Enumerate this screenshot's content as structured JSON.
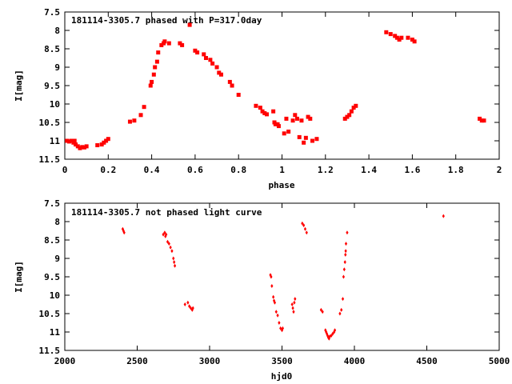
{
  "chart_data": [
    {
      "type": "scatter",
      "title": "181114-3305.7 phased with P=317.0day",
      "xlabel": "phase",
      "ylabel": "I[mag]",
      "xlim": [
        0,
        2
      ],
      "ylim": [
        11.5,
        7.5
      ],
      "y_inverted": true,
      "grid": false,
      "color": "#ff0000",
      "marker": "square",
      "xticks": [
        "0",
        "0.2",
        "0.4",
        "0.6",
        "0.8",
        "1",
        "1.2",
        "1.4",
        "1.6",
        "1.8",
        "2"
      ],
      "yticks": [
        "7.5",
        "8",
        "8.5",
        "9",
        "9.5",
        "10",
        "10.5",
        "11",
        "11.5"
      ],
      "points": [
        [
          0.01,
          11.0
        ],
        [
          0.02,
          11.02
        ],
        [
          0.03,
          11.0
        ],
        [
          0.04,
          11.05
        ],
        [
          0.045,
          11.0
        ],
        [
          0.05,
          11.1
        ],
        [
          0.06,
          11.15
        ],
        [
          0.07,
          11.2
        ],
        [
          0.08,
          11.17
        ],
        [
          0.09,
          11.18
        ],
        [
          0.1,
          11.15
        ],
        [
          0.15,
          11.12
        ],
        [
          0.17,
          11.1
        ],
        [
          0.18,
          11.05
        ],
        [
          0.19,
          11.0
        ],
        [
          0.2,
          10.95
        ],
        [
          0.3,
          10.48
        ],
        [
          0.32,
          10.45
        ],
        [
          0.35,
          10.3
        ],
        [
          0.365,
          10.08
        ],
        [
          0.395,
          9.5
        ],
        [
          0.4,
          9.4
        ],
        [
          0.41,
          9.2
        ],
        [
          0.415,
          9.0
        ],
        [
          0.425,
          8.85
        ],
        [
          0.43,
          8.6
        ],
        [
          0.445,
          8.4
        ],
        [
          0.455,
          8.35
        ],
        [
          0.46,
          8.3
        ],
        [
          0.48,
          8.35
        ],
        [
          0.53,
          8.35
        ],
        [
          0.54,
          8.4
        ],
        [
          0.575,
          7.85
        ],
        [
          0.6,
          8.55
        ],
        [
          0.61,
          8.6
        ],
        [
          0.64,
          8.65
        ],
        [
          0.65,
          8.75
        ],
        [
          0.67,
          8.8
        ],
        [
          0.68,
          8.9
        ],
        [
          0.7,
          9.0
        ],
        [
          0.71,
          9.15
        ],
        [
          0.72,
          9.2
        ],
        [
          0.76,
          9.4
        ],
        [
          0.77,
          9.5
        ],
        [
          0.8,
          9.75
        ],
        [
          0.88,
          10.05
        ],
        [
          0.9,
          10.1
        ],
        [
          0.91,
          10.2
        ],
        [
          0.92,
          10.25
        ],
        [
          0.93,
          10.28
        ],
        [
          0.96,
          10.2
        ],
        [
          0.965,
          10.5
        ],
        [
          0.97,
          10.55
        ],
        [
          0.98,
          10.55
        ],
        [
          0.985,
          10.6
        ],
        [
          1.01,
          10.8
        ],
        [
          1.02,
          10.4
        ],
        [
          1.03,
          10.75
        ],
        [
          1.05,
          10.45
        ],
        [
          1.06,
          10.3
        ],
        [
          1.07,
          10.4
        ],
        [
          1.08,
          10.9
        ],
        [
          1.09,
          10.45
        ],
        [
          1.1,
          11.05
        ],
        [
          1.11,
          10.92
        ],
        [
          1.12,
          10.35
        ],
        [
          1.13,
          10.4
        ],
        [
          1.14,
          11.0
        ],
        [
          1.16,
          10.95
        ],
        [
          1.29,
          10.4
        ],
        [
          1.3,
          10.35
        ],
        [
          1.31,
          10.3
        ],
        [
          1.32,
          10.2
        ],
        [
          1.33,
          10.1
        ],
        [
          1.34,
          10.05
        ],
        [
          1.48,
          8.05
        ],
        [
          1.5,
          8.1
        ],
        [
          1.52,
          8.15
        ],
        [
          1.53,
          8.2
        ],
        [
          1.54,
          8.25
        ],
        [
          1.55,
          8.2
        ],
        [
          1.58,
          8.2
        ],
        [
          1.6,
          8.25
        ],
        [
          1.61,
          8.3
        ],
        [
          1.91,
          10.4
        ],
        [
          1.92,
          10.45
        ],
        [
          1.93,
          10.45
        ]
      ]
    },
    {
      "type": "scatter",
      "title": "181114-3305.7 not phased light curve",
      "xlabel": "hjd0",
      "ylabel": "I[mag]",
      "xlim": [
        2000,
        5000
      ],
      "ylim": [
        11.5,
        7.5
      ],
      "y_inverted": true,
      "grid": false,
      "color": "#ff0000",
      "marker": "diamond",
      "xticks": [
        "2000",
        "2500",
        "3000",
        "3500",
        "4000",
        "4500",
        "5000"
      ],
      "yticks": [
        "7.5",
        "8",
        "8.5",
        "9",
        "9.5",
        "10",
        "10.5",
        "11",
        "11.5"
      ],
      "points": [
        [
          2400,
          8.2
        ],
        [
          2405,
          8.25
        ],
        [
          2410,
          8.3
        ],
        [
          2680,
          8.35
        ],
        [
          2690,
          8.3
        ],
        [
          2695,
          8.4
        ],
        [
          2700,
          8.35
        ],
        [
          2710,
          8.55
        ],
        [
          2720,
          8.6
        ],
        [
          2730,
          8.7
        ],
        [
          2740,
          8.8
        ],
        [
          2750,
          9.0
        ],
        [
          2755,
          9.1
        ],
        [
          2760,
          9.2
        ],
        [
          2830,
          10.25
        ],
        [
          2850,
          10.2
        ],
        [
          2860,
          10.3
        ],
        [
          2870,
          10.35
        ],
        [
          2880,
          10.4
        ],
        [
          2885,
          10.35
        ],
        [
          3420,
          9.45
        ],
        [
          3425,
          9.5
        ],
        [
          3430,
          9.75
        ],
        [
          3440,
          10.05
        ],
        [
          3445,
          10.15
        ],
        [
          3450,
          10.2
        ],
        [
          3460,
          10.45
        ],
        [
          3470,
          10.55
        ],
        [
          3480,
          10.75
        ],
        [
          3490,
          10.9
        ],
        [
          3500,
          10.95
        ],
        [
          3505,
          10.9
        ],
        [
          3570,
          10.25
        ],
        [
          3575,
          10.35
        ],
        [
          3580,
          10.45
        ],
        [
          3585,
          10.2
        ],
        [
          3590,
          10.1
        ],
        [
          3640,
          8.05
        ],
        [
          3650,
          8.1
        ],
        [
          3660,
          8.2
        ],
        [
          3670,
          8.3
        ],
        [
          3770,
          10.4
        ],
        [
          3780,
          10.45
        ],
        [
          3800,
          10.95
        ],
        [
          3805,
          11.0
        ],
        [
          3810,
          11.05
        ],
        [
          3815,
          11.1
        ],
        [
          3820,
          11.15
        ],
        [
          3825,
          11.18
        ],
        [
          3830,
          11.12
        ],
        [
          3840,
          11.1
        ],
        [
          3850,
          11.05
        ],
        [
          3860,
          11.0
        ],
        [
          3865,
          10.95
        ],
        [
          3900,
          10.5
        ],
        [
          3910,
          10.4
        ],
        [
          3920,
          10.1
        ],
        [
          3925,
          9.5
        ],
        [
          3930,
          9.3
        ],
        [
          3935,
          9.1
        ],
        [
          3938,
          8.9
        ],
        [
          3940,
          8.8
        ],
        [
          3942,
          8.6
        ],
        [
          3950,
          8.3
        ],
        [
          4615,
          7.85
        ]
      ]
    }
  ]
}
